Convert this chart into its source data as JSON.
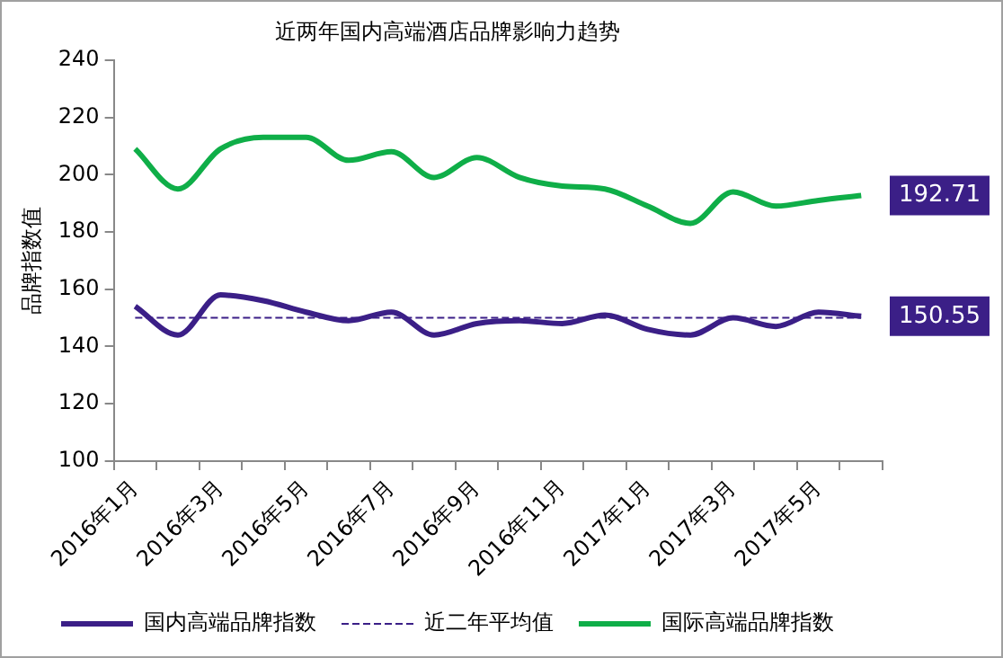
{
  "chart_data": {
    "type": "line",
    "title": "近两年国内高端酒店品牌影响力趋势",
    "ylabel": "品牌指数值",
    "categories": [
      "2016年1月",
      null,
      "2016年3月",
      null,
      "2016年5月",
      null,
      "2016年7月",
      null,
      "2016年9月",
      null,
      "2016年11月",
      null,
      "2017年1月",
      null,
      "2017年3月",
      null,
      "2017年5月",
      null
    ],
    "series": [
      {
        "name": "国内高端品牌指数",
        "color": "#3b1f87",
        "line_style": "solid",
        "values": [
          154,
          144,
          158,
          156,
          152,
          149,
          152,
          144,
          148,
          149,
          148,
          151,
          146,
          144,
          150,
          147,
          152,
          150.55
        ],
        "value_labels": [
          null,
          null,
          null,
          null,
          null,
          null,
          null,
          null,
          null,
          null,
          null,
          null,
          null,
          null,
          null,
          null,
          null,
          "150.55"
        ]
      },
      {
        "name": "近二年平均值",
        "color": "#3b1f87",
        "line_style": "dashed",
        "values": [
          150,
          150,
          150,
          150,
          150,
          150,
          150,
          150,
          150,
          150,
          150,
          150,
          150,
          150,
          150,
          150,
          150,
          150
        ]
      },
      {
        "name": "国际高端品牌指数",
        "color": "#0fae48",
        "line_style": "solid",
        "values": [
          209,
          195,
          209,
          213,
          213,
          205,
          208,
          199,
          206,
          199,
          196,
          195,
          189,
          183,
          194,
          189,
          191,
          192.71
        ],
        "value_labels": [
          null,
          null,
          null,
          null,
          null,
          null,
          null,
          null,
          null,
          null,
          null,
          null,
          null,
          null,
          null,
          null,
          null,
          "192.71"
        ]
      }
    ],
    "ylim": [
      100,
      240
    ],
    "yticks": [
      100,
      120,
      140,
      160,
      180,
      200,
      220,
      240
    ],
    "grid": false,
    "legend": "bottom",
    "marker": "none"
  }
}
